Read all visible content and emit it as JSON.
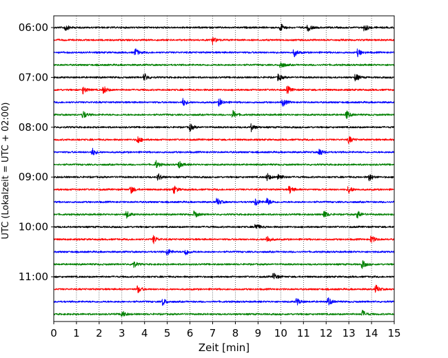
{
  "chart_data": {
    "type": "line",
    "title": "",
    "xlabel": "Zeit  [min]",
    "ylabel": "UTC (Lokalzeit = UTC + 02:00)",
    "xlim": [
      0,
      15
    ],
    "x_ticks": [
      0,
      1,
      2,
      3,
      4,
      5,
      6,
      7,
      8,
      9,
      10,
      11,
      12,
      13,
      14,
      15
    ],
    "y_ticks": [
      "06:00",
      "07:00",
      "08:00",
      "09:00",
      "10:00",
      "11:00"
    ],
    "grid_x": true,
    "trace_interval_min": 15,
    "trace_colors": [
      "#000000",
      "#ff0000",
      "#0000ff",
      "#008000"
    ],
    "traces": [
      {
        "start": "06:00",
        "events": [
          0.5,
          10,
          11.2,
          13.7
        ]
      },
      {
        "start": "06:15",
        "events": [
          7.0
        ]
      },
      {
        "start": "06:30",
        "events": [
          3.6,
          10.6,
          13.4
        ]
      },
      {
        "start": "06:45",
        "events": [
          10.0
        ]
      },
      {
        "start": "07:00",
        "events": [
          4.0,
          9.9,
          13.3
        ]
      },
      {
        "start": "07:15",
        "events": [
          1.3,
          2.2,
          10.3
        ]
      },
      {
        "start": "07:30",
        "events": [
          5.7,
          7.3,
          10.1
        ]
      },
      {
        "start": "07:45",
        "events": [
          1.3,
          7.9,
          12.9
        ]
      },
      {
        "start": "08:00",
        "events": [
          6.0,
          8.7
        ]
      },
      {
        "start": "08:15",
        "events": [
          3.7,
          13.0
        ]
      },
      {
        "start": "08:30",
        "events": [
          1.7,
          11.7
        ]
      },
      {
        "start": "08:45",
        "events": [
          4.5,
          5.5
        ]
      },
      {
        "start": "09:00",
        "events": [
          4.6,
          9.4,
          9.9,
          13.9
        ]
      },
      {
        "start": "09:15",
        "events": [
          3.4,
          5.3,
          10.4,
          13.0
        ]
      },
      {
        "start": "09:30",
        "events": [
          7.2,
          8.9,
          9.4
        ]
      },
      {
        "start": "09:45",
        "events": [
          3.2,
          6.2,
          11.9,
          13.4
        ]
      },
      {
        "start": "10:00",
        "events": [
          8.9
        ]
      },
      {
        "start": "10:15",
        "events": [
          4.4,
          9.4,
          14.0
        ]
      },
      {
        "start": "10:30",
        "events": [
          5.0,
          5.8
        ]
      },
      {
        "start": "10:45",
        "events": [
          3.5,
          13.6
        ]
      },
      {
        "start": "11:00",
        "events": [
          9.7
        ]
      },
      {
        "start": "11:15",
        "events": [
          3.7,
          14.2
        ]
      },
      {
        "start": "11:30",
        "events": [
          4.8,
          10.7,
          12.1
        ]
      },
      {
        "start": "11:45",
        "events": [
          3.0,
          13.6
        ]
      }
    ]
  }
}
